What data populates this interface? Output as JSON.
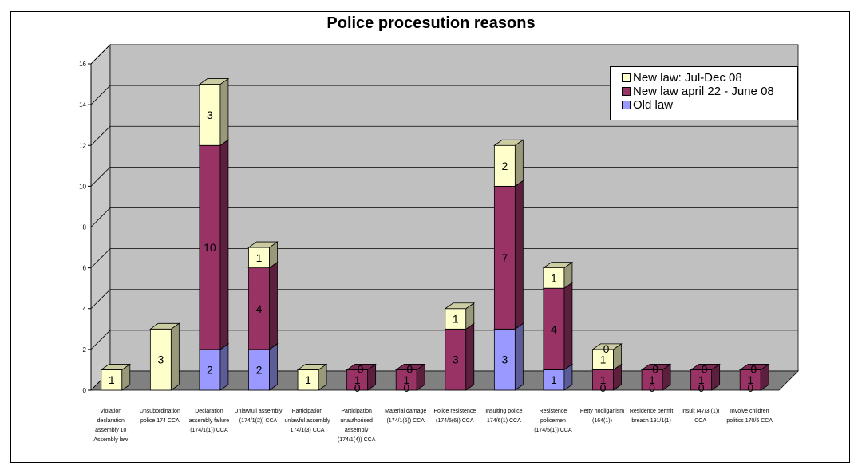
{
  "chart_data": {
    "type": "bar",
    "stacked": true,
    "three_d": true,
    "title": "Police procesution reasons",
    "xlabel": "",
    "ylabel": "",
    "ylim": [
      0,
      16
    ],
    "yticks": [
      0,
      2,
      4,
      6,
      8,
      10,
      12,
      14,
      16
    ],
    "grid": true,
    "legend_position": "top-right",
    "categories": [
      [
        "Violation",
        "declaration",
        "assembly 10",
        "Assembly law"
      ],
      [
        "Unsubordination",
        "police 174 CCA"
      ],
      [
        "Declaration",
        "assembly failure",
        "(174/1(1)) CCA"
      ],
      [
        "Unlawfull assembly",
        "(174/1(2)) CCA"
      ],
      [
        "Participation",
        "unlawful assembly",
        "174/1(3) CCA"
      ],
      [
        "Participation",
        "unauthorised",
        "assembly",
        "(174/1(4)) CCA"
      ],
      [
        "Material damage",
        "(174/1(5)) CCA"
      ],
      [
        "Police resistence",
        "(174/5(6)) CCA"
      ],
      [
        "Insulting police",
        "174/6(1) CCA"
      ],
      [
        "Resistence",
        "policemen",
        "(174/5(1)) CCA"
      ],
      [
        "Petty hooliganism",
        "(164(1))"
      ],
      [
        "Residence permit",
        "breach 191/1(1)"
      ],
      [
        "Insult (47/3 (1))",
        "CCA"
      ],
      [
        "Involve children",
        "politics 170/5 CCA"
      ]
    ],
    "series": [
      {
        "name": "Old law",
        "color": "#9999ff",
        "values": [
          0,
          0,
          2,
          2,
          0,
          0,
          0,
          0,
          3,
          1,
          0,
          0,
          0,
          0
        ],
        "labels": [
          "",
          "",
          "2",
          "2",
          "",
          "",
          "",
          "0",
          "3",
          "1",
          "",
          "",
          "",
          ""
        ]
      },
      {
        "name": "New law april 22 - June 08",
        "color": "#993366",
        "values": [
          0,
          0,
          10,
          4,
          0,
          1,
          1,
          3,
          7,
          4,
          1,
          1,
          1,
          1
        ],
        "labels": [
          "",
          "",
          "10",
          "4",
          "",
          "1",
          "1",
          "3",
          "7",
          "4",
          "1",
          "1",
          "1",
          "1"
        ]
      },
      {
        "name": "New law: Jul-Dec 08",
        "color": "#ffffcc",
        "values": [
          1,
          3,
          3,
          1,
          1,
          0,
          0,
          1,
          2,
          1,
          1,
          0,
          0,
          0
        ],
        "labels": [
          "1",
          "3",
          "3",
          "1",
          "1",
          "",
          "",
          "1",
          "2",
          "1",
          "1",
          "",
          "",
          ""
        ]
      }
    ],
    "extra_zero_labels": [
      5,
      6,
      10,
      11,
      12,
      13
    ]
  }
}
